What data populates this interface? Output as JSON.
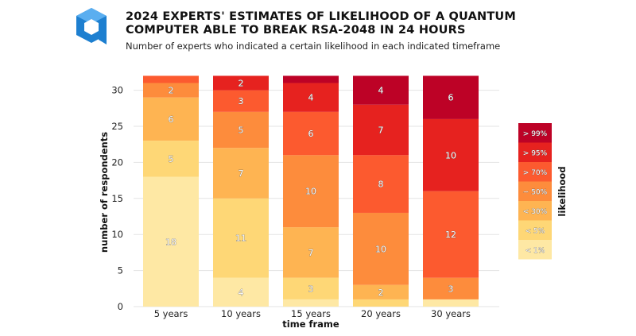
{
  "header": {
    "title_line1": "2024 EXPERTS' ESTIMATES OF LIKELIHOOD OF A QUANTUM",
    "title_line2": "COMPUTER ABLE TO BREAK RSA-2048 IN 24 HOURS",
    "subtitle": "Number of experts who indicated a certain likelihood in each indicated timeframe"
  },
  "logo": {
    "icon": "cube-logo-icon",
    "color": "#1d7fd0"
  },
  "chart_data": {
    "type": "bar",
    "stacked": true,
    "categories": [
      "5 years",
      "10 years",
      "15 years",
      "20 years",
      "30 years"
    ],
    "xlabel": "time frame",
    "ylabel": "number of respondents",
    "ylim": [
      0,
      32
    ],
    "yticks": [
      0,
      5,
      10,
      15,
      20,
      25,
      30
    ],
    "grid": true,
    "legend": {
      "title": "likelihood",
      "placement": "right"
    },
    "series": [
      {
        "name": "< 1%",
        "color": "#fee8a4",
        "values": [
          18,
          4,
          1,
          0,
          1
        ]
      },
      {
        "name": "< 5%",
        "color": "#fed776",
        "values": [
          5,
          11,
          3,
          1,
          0
        ]
      },
      {
        "name": "< 30%",
        "color": "#feb452",
        "values": [
          6,
          7,
          7,
          2,
          0
        ]
      },
      {
        "name": "~ 50%",
        "color": "#fd8c3c",
        "values": [
          2,
          5,
          10,
          10,
          3
        ]
      },
      {
        "name": "> 70%",
        "color": "#fc5a2f",
        "values": [
          1,
          3,
          6,
          8,
          12
        ]
      },
      {
        "name": "> 95%",
        "color": "#e6221f",
        "values": [
          0,
          2,
          4,
          7,
          10
        ]
      },
      {
        "name": "> 99%",
        "color": "#bd0226",
        "values": [
          0,
          0,
          1,
          4,
          6
        ]
      }
    ],
    "data_labels": [
      [
        18,
        5,
        6,
        2,
        null,
        null,
        null
      ],
      [
        4,
        11,
        7,
        5,
        3,
        2,
        null
      ],
      [
        null,
        3,
        7,
        10,
        6,
        4,
        null
      ],
      [
        null,
        null,
        2,
        10,
        8,
        7,
        4
      ],
      [
        null,
        null,
        null,
        3,
        12,
        10,
        6
      ]
    ]
  }
}
